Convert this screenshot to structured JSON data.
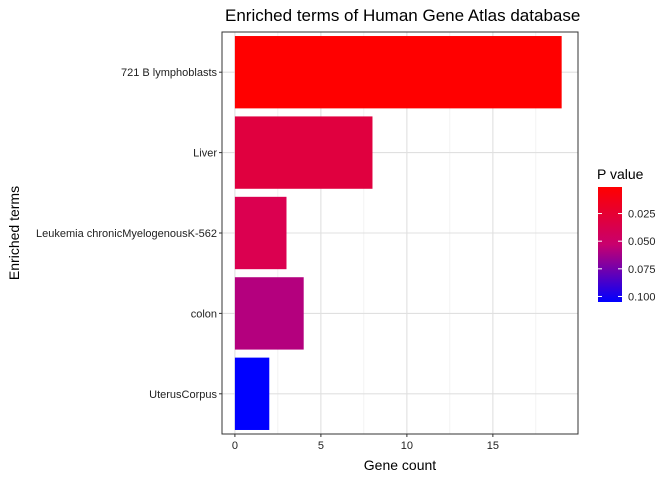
{
  "chart_data": {
    "type": "bar",
    "orientation": "horizontal",
    "title": "Enriched terms of Human Gene Atlas database",
    "xlabel": "Gene count",
    "ylabel": "Enriched terms",
    "categories": [
      "721 B lymphoblasts",
      "Liver",
      "Leukemia chronicMyelogenousK-562",
      "colon",
      "UterusCorpus"
    ],
    "values": [
      19,
      8,
      3,
      4,
      2
    ],
    "p_values": [
      0.001,
      0.022,
      0.025,
      0.06,
      0.105
    ],
    "bar_colors": [
      "#FF0000",
      "#E0003F",
      "#DB0050",
      "#B4007E",
      "#0000FF"
    ],
    "xlim": [
      -0.75,
      19.95
    ],
    "xticks": [
      0,
      5,
      10,
      15
    ],
    "xtick_labels": [
      "0",
      "5",
      "10",
      "15"
    ],
    "grid": true,
    "legend": {
      "title": "P value",
      "position": "right",
      "labels": [
        "0.025",
        "0.050",
        "0.075",
        "0.100"
      ],
      "label_values": [
        0.025,
        0.05,
        0.075,
        0.1
      ],
      "range": [
        0.001,
        0.105
      ],
      "color_low": "#FF0000",
      "color_high": "#0000FF"
    }
  }
}
